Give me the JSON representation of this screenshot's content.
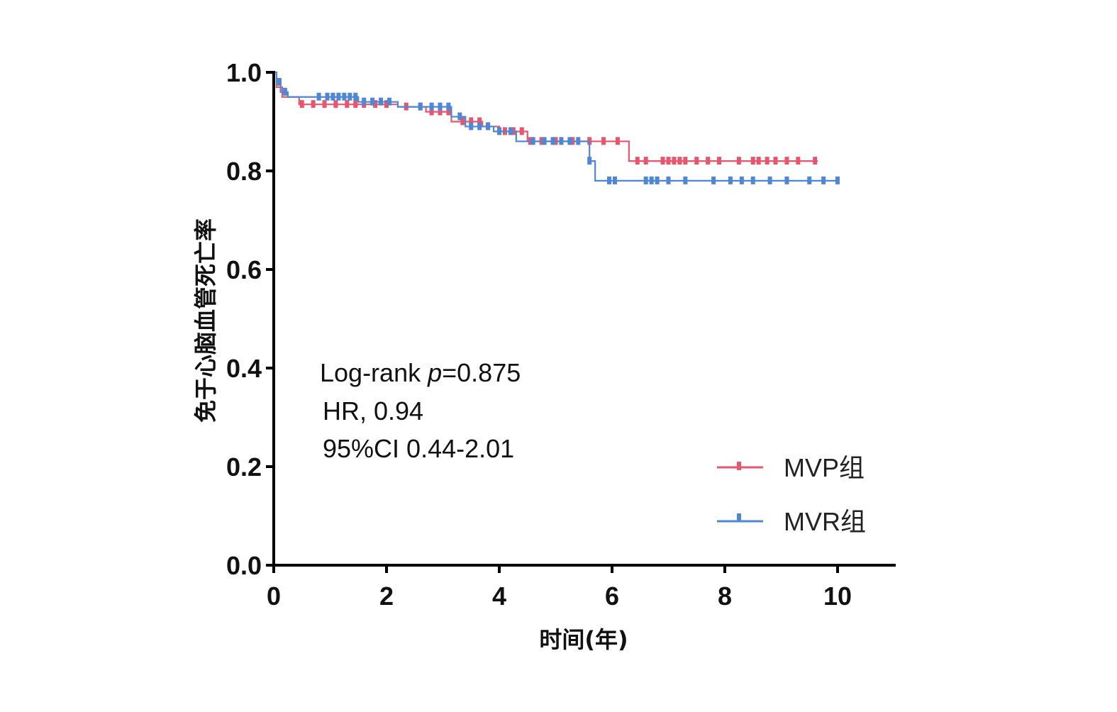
{
  "chart_data": {
    "type": "line",
    "title": "",
    "xlabel": "时间(年)",
    "ylabel": "免于心脑血管死亡率",
    "xlim": [
      0,
      11
    ],
    "ylim": [
      0,
      1.0
    ],
    "x_ticks": [
      "0",
      "2",
      "4",
      "6",
      "8",
      "10"
    ],
    "y_ticks": [
      "0.0",
      "0.2",
      "0.4",
      "0.6",
      "0.8",
      "1.0"
    ],
    "grid": false,
    "legend_position": "bottom-right",
    "annotations": {
      "line1_prefix": "Log-rank ",
      "line1_p": "p",
      "line1_value": "=0.875",
      "line2": "HR, 0.94",
      "line3": "95%CI 0.44-2.01"
    },
    "series": [
      {
        "name": "MVP组",
        "color": "#e8566e",
        "steps": [
          [
            0,
            1.0
          ],
          [
            0.05,
            0.97
          ],
          [
            0.15,
            0.95
          ],
          [
            0.45,
            0.935
          ],
          [
            2.2,
            0.93
          ],
          [
            2.7,
            0.92
          ],
          [
            3.15,
            0.9
          ],
          [
            3.7,
            0.89
          ],
          [
            4.0,
            0.88
          ],
          [
            4.5,
            0.86
          ],
          [
            6.3,
            0.82
          ],
          [
            9.65,
            0.82
          ]
        ],
        "censor": [
          0.5,
          0.7,
          0.9,
          1.1,
          1.3,
          1.45,
          1.6,
          1.8,
          2.0,
          2.35,
          2.6,
          2.8,
          2.95,
          3.1,
          3.35,
          3.5,
          3.65,
          3.8,
          4.1,
          4.25,
          4.4,
          4.55,
          4.75,
          5.0,
          5.3,
          5.6,
          5.85,
          6.1,
          6.45,
          6.6,
          6.9,
          7.0,
          7.1,
          7.2,
          7.3,
          7.5,
          7.7,
          7.9,
          8.25,
          8.5,
          8.6,
          8.75,
          8.9,
          9.1,
          9.3,
          9.6
        ]
      },
      {
        "name": "MVR组",
        "color": "#4f87d4",
        "steps": [
          [
            0,
            1.0
          ],
          [
            0.05,
            0.98
          ],
          [
            0.12,
            0.96
          ],
          [
            0.25,
            0.95
          ],
          [
            1.5,
            0.94
          ],
          [
            2.2,
            0.93
          ],
          [
            3.15,
            0.91
          ],
          [
            3.4,
            0.89
          ],
          [
            3.9,
            0.88
          ],
          [
            4.3,
            0.86
          ],
          [
            5.55,
            0.86
          ],
          [
            5.6,
            0.82
          ],
          [
            5.7,
            0.78
          ],
          [
            10.0,
            0.78
          ]
        ],
        "censor": [
          0.1,
          0.2,
          0.8,
          0.95,
          1.05,
          1.15,
          1.25,
          1.35,
          1.45,
          1.6,
          1.75,
          1.9,
          2.05,
          2.6,
          2.8,
          2.95,
          3.1,
          3.3,
          3.5,
          3.65,
          3.8,
          4.0,
          4.2,
          4.6,
          4.8,
          4.95,
          5.1,
          5.25,
          5.4,
          5.6,
          5.95,
          6.05,
          6.6,
          6.7,
          6.8,
          7.0,
          7.3,
          7.8,
          8.1,
          8.3,
          8.5,
          8.8,
          9.1,
          9.5,
          9.75,
          10.0
        ]
      }
    ]
  }
}
